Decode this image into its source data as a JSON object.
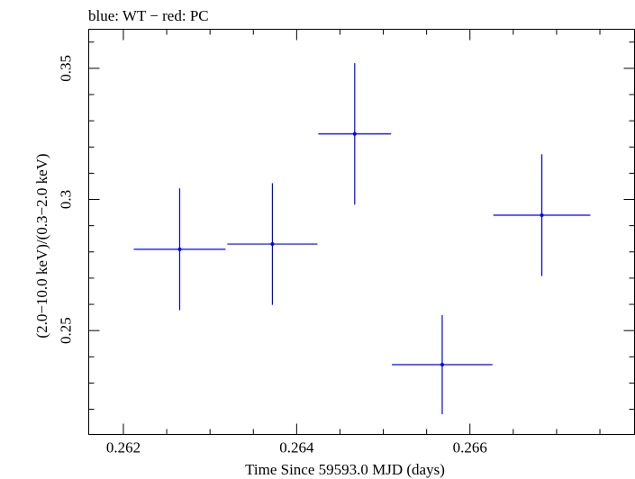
{
  "chart_data": {
    "type": "scatter",
    "title": "blue: WT − red: PC",
    "xlabel": "Time Since 59593.0 MJD (days)",
    "ylabel": "(2.0−10.0 keV)/(0.3−2.0 keV)",
    "xlim": [
      0.2616,
      0.2679
    ],
    "ylim": [
      0.2104,
      0.3649
    ],
    "x_ticks": [
      0.262,
      0.264,
      0.266
    ],
    "x_tick_labels": [
      "0.262",
      "0.264",
      "0.266"
    ],
    "y_ticks": [
      0.25,
      0.3,
      0.35
    ],
    "y_tick_labels": [
      "0.25",
      "0.3",
      "0.35"
    ],
    "grid": false,
    "colors": {
      "WT": "#0000ff",
      "PC": "#ff0000",
      "axes": "#000000"
    },
    "series": [
      {
        "name": "WT",
        "color": "#0000ff",
        "points": [
          {
            "x": 0.26265,
            "y": 0.281,
            "xerr": 0.00053,
            "yerr": 0.0232
          },
          {
            "x": 0.26372,
            "y": 0.283,
            "xerr": 0.00052,
            "yerr": 0.0232
          },
          {
            "x": 0.26467,
            "y": 0.325,
            "xerr": 0.00042,
            "yerr": 0.027
          },
          {
            "x": 0.26568,
            "y": 0.237,
            "xerr": 0.00058,
            "yerr": 0.0189
          },
          {
            "x": 0.26683,
            "y": 0.294,
            "xerr": 0.00056,
            "yerr": 0.0232
          }
        ]
      }
    ]
  }
}
